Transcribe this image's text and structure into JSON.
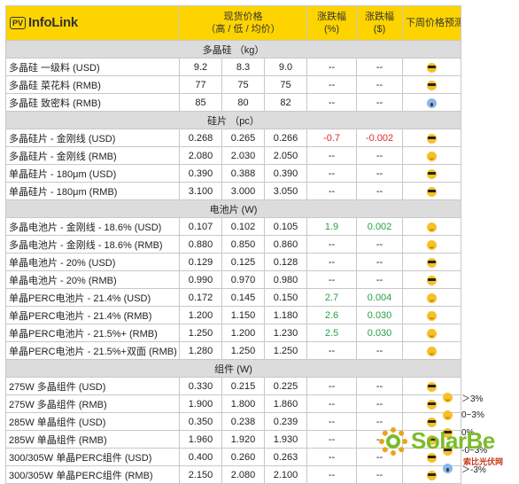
{
  "header": {
    "logo_badge": "PV",
    "logo_text": "InfoLink",
    "spot_price_title": "现货价格",
    "spot_price_sub": "（高 / 低 / 均价）",
    "change_pct": "涨跌幅",
    "change_pct_unit": "(%)",
    "change_usd": "涨跌幅",
    "change_usd_unit": "($)",
    "forecast": "下周价格预测"
  },
  "sections": [
    {
      "title": "多晶硅 （kg）",
      "rows": [
        {
          "name": "多晶硅 一级料 (USD)",
          "high": "9.2",
          "low": "8.3",
          "avg": "9.0",
          "pct": "--",
          "usd": "--",
          "trend": "cool"
        },
        {
          "name": "多晶硅 菜花料 (RMB)",
          "high": "77",
          "low": "75",
          "avg": "75",
          "pct": "--",
          "usd": "--",
          "trend": "cool"
        },
        {
          "name": "多晶硅 致密料 (RMB)",
          "high": "85",
          "low": "80",
          "avg": "82",
          "pct": "--",
          "usd": "--",
          "trend": "scream"
        }
      ]
    },
    {
      "title": "硅片 （pc）",
      "rows": [
        {
          "name": "多晶硅片 - 金刚线 (USD)",
          "high": "0.268",
          "low": "0.265",
          "avg": "0.266",
          "pct": "-0.7",
          "usd": "-0.002",
          "trend": "cool",
          "color": "red"
        },
        {
          "name": "多晶硅片 - 金刚线 (RMB)",
          "high": "2.080",
          "low": "2.030",
          "avg": "2.050",
          "pct": "--",
          "usd": "--",
          "trend": "smile"
        },
        {
          "name": "单晶硅片 - 180μm (USD)",
          "high": "0.390",
          "low": "0.388",
          "avg": "0.390",
          "pct": "--",
          "usd": "--",
          "trend": "cool"
        },
        {
          "name": "单晶硅片 - 180μm (RMB)",
          "high": "3.100",
          "low": "3.000",
          "avg": "3.050",
          "pct": "--",
          "usd": "--",
          "trend": "cool"
        }
      ]
    },
    {
      "title": "电池片 (W)",
      "rows": [
        {
          "name": "多晶电池片 - 金刚线 - 18.6% (USD)",
          "high": "0.107",
          "low": "0.102",
          "avg": "0.105",
          "pct": "1.9",
          "usd": "0.002",
          "trend": "smile",
          "color": "green"
        },
        {
          "name": "多晶电池片 - 金刚线 - 18.6% (RMB)",
          "high": "0.880",
          "low": "0.850",
          "avg": "0.860",
          "pct": "--",
          "usd": "--",
          "trend": "smile"
        },
        {
          "name": "单晶电池片 - 20% (USD)",
          "high": "0.129",
          "low": "0.125",
          "avg": "0.128",
          "pct": "--",
          "usd": "--",
          "trend": "cool"
        },
        {
          "name": "单晶电池片 - 20% (RMB)",
          "high": "0.990",
          "low": "0.970",
          "avg": "0.980",
          "pct": "--",
          "usd": "--",
          "trend": "cool"
        },
        {
          "name": "单晶PERC电池片 - 21.4% (USD)",
          "high": "0.172",
          "low": "0.145",
          "avg": "0.150",
          "pct": "2.7",
          "usd": "0.004",
          "trend": "smile",
          "color": "green"
        },
        {
          "name": "单晶PERC电池片 - 21.4% (RMB)",
          "high": "1.200",
          "low": "1.150",
          "avg": "1.180",
          "pct": "2.6",
          "usd": "0.030",
          "trend": "smile",
          "color": "green"
        },
        {
          "name": "单晶PERC电池片 - 21.5%+ (RMB)",
          "high": "1.250",
          "low": "1.200",
          "avg": "1.230",
          "pct": "2.5",
          "usd": "0.030",
          "trend": "smile",
          "color": "green"
        },
        {
          "name": "单晶PERC电池片 - 21.5%+双面 (RMB)",
          "high": "1.280",
          "low": "1.250",
          "avg": "1.250",
          "pct": "--",
          "usd": "--",
          "trend": "smile"
        }
      ]
    },
    {
      "title": "组件 (W)",
      "rows": [
        {
          "name": "275W 多晶组件 (USD)",
          "high": "0.330",
          "low": "0.215",
          "avg": "0.225",
          "pct": "--",
          "usd": "--",
          "trend": "cool"
        },
        {
          "name": "275W 多晶组件 (RMB)",
          "high": "1.900",
          "low": "1.800",
          "avg": "1.860",
          "pct": "--",
          "usd": "--",
          "trend": "cool"
        },
        {
          "name": "285W 单晶组件 (USD)",
          "high": "0.350",
          "low": "0.238",
          "avg": "0.239",
          "pct": "--",
          "usd": "--",
          "trend": "cool"
        },
        {
          "name": "285W 单晶组件 (RMB)",
          "high": "1.960",
          "low": "1.920",
          "avg": "1.930",
          "pct": "--",
          "usd": "--",
          "trend": "cool"
        },
        {
          "name": "300/305W 单晶PERC组件 (USD)",
          "high": "0.400",
          "low": "0.260",
          "avg": "0.263",
          "pct": "--",
          "usd": "--",
          "trend": "cool"
        },
        {
          "name": "300/305W 单晶PERC组件 (RMB)",
          "high": "2.150",
          "low": "2.080",
          "avg": "2.100",
          "pct": "--",
          "usd": "--",
          "trend": "cool"
        }
      ]
    }
  ],
  "legend": [
    {
      "icon": "smile",
      "label": "＞3%"
    },
    {
      "icon": "smile",
      "label": "0~3%"
    },
    {
      "icon": "cool",
      "label": "0%"
    },
    {
      "icon": "cool",
      "label": "-0~3%"
    },
    {
      "icon": "scream",
      "label": "＞-3%"
    }
  ],
  "watermark": {
    "name": "SolarBe",
    "sub": "索比光伏网"
  },
  "colors": {
    "header_bg": "#fdd400",
    "section_bg": "#dcdcdc",
    "up": "#27a040",
    "down": "#e02a2a"
  }
}
